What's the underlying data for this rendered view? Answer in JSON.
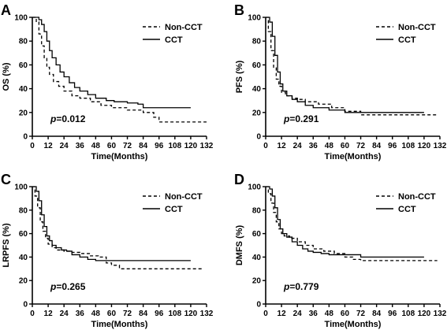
{
  "chart_data": [
    {
      "panel": "A",
      "type": "line",
      "xlabel": "Time(Months)",
      "ylabel": "OS (%)",
      "xlim": [
        0,
        132
      ],
      "ylim": [
        0,
        100
      ],
      "xticks": [
        0,
        12,
        24,
        36,
        48,
        60,
        72,
        84,
        96,
        108,
        120,
        132
      ],
      "yticks": [
        0,
        20,
        40,
        60,
        80,
        100
      ],
      "legend": "top-right",
      "pvalue": {
        "prefix": "p",
        "value": "=0.012"
      },
      "series": [
        {
          "name": "Non-CCT",
          "style": "dashed",
          "x": [
            0,
            3,
            5,
            7,
            9,
            11,
            13,
            16,
            20,
            24,
            30,
            36,
            44,
            52,
            60,
            72,
            84,
            92,
            96,
            132
          ],
          "y": [
            100,
            96,
            86,
            76,
            66,
            58,
            52,
            46,
            42,
            38,
            34,
            32,
            29,
            26,
            24,
            22,
            20,
            16,
            12,
            12
          ]
        },
        {
          "name": "CCT",
          "style": "solid",
          "x": [
            0,
            5,
            7,
            9,
            11,
            13,
            15,
            18,
            21,
            24,
            28,
            32,
            36,
            42,
            48,
            56,
            62,
            72,
            80,
            84,
            96,
            108,
            120
          ],
          "y": [
            100,
            98,
            94,
            88,
            80,
            72,
            66,
            60,
            54,
            50,
            45,
            41,
            38,
            35,
            32,
            30,
            29,
            28,
            27,
            24,
            24,
            24,
            24
          ]
        }
      ]
    },
    {
      "panel": "B",
      "type": "line",
      "xlabel": "Time(Months)",
      "ylabel": "PFS (%)",
      "xlim": [
        0,
        132
      ],
      "ylim": [
        0,
        100
      ],
      "xticks": [
        0,
        12,
        24,
        36,
        48,
        60,
        72,
        84,
        96,
        108,
        120,
        132
      ],
      "yticks": [
        0,
        20,
        40,
        60,
        80,
        100
      ],
      "legend": "top-right",
      "pvalue": {
        "prefix": "p",
        "value": "=0.291"
      },
      "series": [
        {
          "name": "Non-CCT",
          "style": "dashed",
          "x": [
            0,
            2,
            4,
            6,
            8,
            10,
            12,
            15,
            20,
            24,
            30,
            40,
            50,
            60,
            72,
            96,
            130
          ],
          "y": [
            100,
            88,
            72,
            58,
            48,
            42,
            37,
            34,
            32,
            31,
            29,
            27,
            24,
            21,
            18,
            18,
            18
          ]
        },
        {
          "name": "CCT",
          "style": "solid",
          "x": [
            0,
            3,
            5,
            7,
            9,
            11,
            13,
            16,
            20,
            24,
            30,
            36,
            48,
            60,
            72,
            84,
            96,
            108,
            120
          ],
          "y": [
            100,
            96,
            84,
            68,
            54,
            44,
            38,
            34,
            31,
            29,
            26,
            24,
            22,
            20,
            20,
            20,
            20,
            20,
            20
          ]
        }
      ]
    },
    {
      "panel": "C",
      "type": "line",
      "xlabel": "Time(Months)",
      "ylabel": "LRPFS (%)",
      "xlim": [
        0,
        132
      ],
      "ylim": [
        0,
        100
      ],
      "xticks": [
        0,
        12,
        24,
        36,
        48,
        60,
        72,
        84,
        96,
        108,
        120,
        132
      ],
      "yticks": [
        0,
        20,
        40,
        60,
        80,
        100
      ],
      "legend": "top-right",
      "pvalue": {
        "prefix": "p",
        "value": "=0.265"
      },
      "series": [
        {
          "name": "Non-CCT",
          "style": "dashed",
          "x": [
            0,
            2,
            4,
            6,
            8,
            10,
            12,
            15,
            18,
            24,
            30,
            36,
            44,
            50,
            56,
            60,
            66,
            80,
            100,
            130
          ],
          "y": [
            100,
            92,
            82,
            70,
            62,
            56,
            51,
            48,
            46,
            45,
            44,
            43,
            41,
            40,
            35,
            33,
            30,
            30,
            30,
            30
          ]
        },
        {
          "name": "CCT",
          "style": "solid",
          "x": [
            0,
            3,
            5,
            7,
            9,
            11,
            13,
            15,
            18,
            22,
            26,
            30,
            36,
            42,
            48,
            60,
            72,
            84,
            96,
            108,
            120
          ],
          "y": [
            100,
            96,
            88,
            76,
            66,
            58,
            54,
            50,
            48,
            46,
            45,
            42,
            40,
            38,
            37,
            37,
            37,
            37,
            37,
            37,
            37
          ]
        }
      ]
    },
    {
      "panel": "D",
      "type": "line",
      "xlabel": "Time(Months)",
      "ylabel": "DMFS (%)",
      "xlim": [
        0,
        132
      ],
      "ylim": [
        0,
        100
      ],
      "xticks": [
        0,
        12,
        24,
        36,
        48,
        60,
        72,
        84,
        96,
        108,
        120,
        132
      ],
      "yticks": [
        0,
        20,
        40,
        60,
        80,
        100
      ],
      "legend": "top-right",
      "pvalue": {
        "prefix": "p",
        "value": "=0.779"
      },
      "series": [
        {
          "name": "Non-CCT",
          "style": "dashed",
          "x": [
            0,
            2,
            4,
            6,
            8,
            10,
            12,
            14,
            18,
            24,
            30,
            36,
            44,
            52,
            60,
            66,
            72,
            96,
            130
          ],
          "y": [
            100,
            94,
            86,
            78,
            70,
            64,
            60,
            58,
            56,
            53,
            50,
            47,
            45,
            43,
            40,
            38,
            37,
            37,
            37
          ]
        },
        {
          "name": "CCT",
          "style": "solid",
          "x": [
            0,
            3,
            5,
            7,
            9,
            11,
            13,
            16,
            20,
            24,
            28,
            32,
            36,
            42,
            48,
            60,
            72,
            84,
            96,
            108,
            120
          ],
          "y": [
            100,
            98,
            92,
            82,
            72,
            64,
            60,
            57,
            53,
            50,
            47,
            45,
            44,
            43,
            42,
            42,
            40,
            40,
            40,
            40,
            40
          ]
        }
      ]
    }
  ]
}
